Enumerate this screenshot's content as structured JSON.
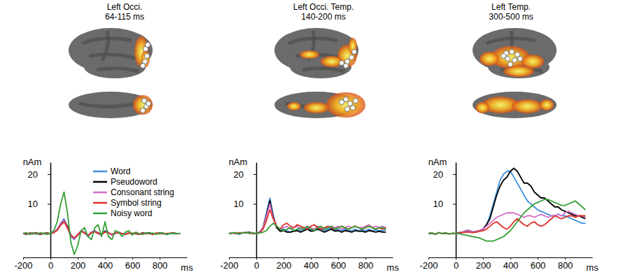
{
  "chart_data": [
    {
      "type": "line",
      "title": "Left Occi.",
      "subtitle": "64-115 ms",
      "x_label": "ms",
      "y_label": "nAm",
      "x": [
        -200,
        -175,
        -150,
        -125,
        -100,
        -75,
        -50,
        -25,
        0,
        25,
        50,
        75,
        100,
        125,
        150,
        175,
        200,
        225,
        250,
        275,
        300,
        325,
        350,
        375,
        400,
        425,
        450,
        475,
        500,
        525,
        550,
        575,
        600,
        625,
        650,
        675,
        700,
        725,
        750,
        775,
        800,
        825,
        850,
        875,
        900,
        925,
        950
      ],
      "xlim": [
        -200,
        1000
      ],
      "xticks": [
        -200,
        0,
        200,
        400,
        600,
        800
      ],
      "ylim": [
        -8,
        24
      ],
      "yticks": [
        10,
        20
      ],
      "legend": "top-right",
      "series": [
        {
          "name": "Word",
          "color": "#3f8fd8",
          "values": [
            0,
            0.2,
            -0.2,
            0.3,
            0,
            -0.3,
            0.2,
            0,
            0,
            0.5,
            1.5,
            3.5,
            5,
            2,
            -1,
            -2,
            -0.5,
            1,
            0.5,
            -1,
            0.5,
            1,
            0,
            -0.5,
            1,
            0.5,
            -0.5,
            0,
            0.5,
            0,
            -0.3,
            0.3,
            0,
            0.2,
            -0.2,
            0.2,
            0,
            0.3,
            -0.2,
            0.1,
            0,
            0.2,
            -0.3,
            0,
            0.2,
            0,
            0.1
          ]
        },
        {
          "name": "Pseudoword",
          "color": "#000000",
          "values": [
            0,
            -0.2,
            0.2,
            0,
            0.3,
            -0.2,
            0,
            0.2,
            0,
            0.4,
            1.2,
            3,
            4.5,
            2.5,
            -0.5,
            -1.5,
            -0.5,
            0.8,
            0.3,
            -0.8,
            0.3,
            0.8,
            0.2,
            -0.3,
            0.8,
            0.3,
            -0.3,
            0.2,
            0.4,
            0,
            -0.2,
            0.2,
            0.1,
            0,
            -0.2,
            0.3,
            0,
            0.2,
            -0.1,
            0,
            0.2,
            0.1,
            -0.2,
            0.1,
            0.2,
            0,
            0
          ]
        },
        {
          "name": "Consonant string",
          "color": "#d36fc6",
          "values": [
            0.2,
            0,
            0,
            -0.2,
            0.2,
            0,
            0.1,
            -0.1,
            0,
            0.5,
            1.5,
            3.5,
            4.5,
            2,
            -0.8,
            -1.8,
            -0.3,
            1,
            0.3,
            -0.8,
            0.5,
            0.8,
            0,
            -0.4,
            0.6,
            0.4,
            -0.4,
            0.1,
            0.3,
            0.1,
            -0.2,
            0.3,
            0,
            0.2,
            -0.1,
            0.1,
            0.2,
            0,
            -0.2,
            0.2,
            0,
            0.1,
            -0.1,
            0.2,
            0,
            -0.1,
            0.1
          ]
        },
        {
          "name": "Symbol string",
          "color": "#e2302b",
          "values": [
            0,
            0.1,
            -0.1,
            0.2,
            0,
            -0.1,
            0.1,
            0,
            0,
            0.3,
            1.2,
            2.8,
            4,
            1.8,
            -0.5,
            -1.5,
            -0.3,
            0.8,
            0.2,
            -0.6,
            0.4,
            0.6,
            0,
            -0.2,
            0.5,
            0.2,
            -0.3,
            0.2,
            0.3,
            0,
            -0.2,
            0.2,
            0,
            0.1,
            -0.2,
            0.1,
            0.1,
            0,
            -0.3,
            0.2,
            0,
            -0.1,
            0.1,
            0,
            0.2,
            -0.1,
            0
          ]
        },
        {
          "name": "Noisy word",
          "color": "#34a035",
          "values": [
            0,
            0.3,
            -0.3,
            0.2,
            -0.2,
            0.3,
            0,
            -0.2,
            0,
            1,
            4,
            10,
            14,
            7,
            -3,
            -7,
            -4,
            1,
            2,
            -1,
            -2,
            2,
            3,
            -1,
            4,
            -1,
            -2,
            1,
            0.5,
            -1,
            0.5,
            1,
            -0.5,
            0.5,
            0,
            -0.3,
            0.3,
            0,
            0.2,
            -0.2,
            0,
            0.2,
            -0.2,
            0,
            0.1,
            0,
            0
          ]
        }
      ]
    },
    {
      "type": "line",
      "title": "Left Occi. Temp.",
      "subtitle": "140-200 ms",
      "x_label": "ms",
      "y_label": "nAm",
      "x": [
        -200,
        -175,
        -150,
        -125,
        -100,
        -75,
        -50,
        -25,
        0,
        25,
        50,
        75,
        100,
        125,
        150,
        175,
        200,
        225,
        250,
        275,
        300,
        325,
        350,
        375,
        400,
        425,
        450,
        475,
        500,
        525,
        550,
        575,
        600,
        625,
        650,
        675,
        700,
        725,
        750,
        775,
        800,
        825,
        850,
        875,
        900,
        925,
        950
      ],
      "xlim": [
        -200,
        1000
      ],
      "xticks": [
        -200,
        0,
        200,
        400,
        600,
        800
      ],
      "ylim": [
        -8,
        24
      ],
      "yticks": [
        10,
        20
      ],
      "series": [
        {
          "name": "Word",
          "color": "#3f8fd8",
          "values": [
            0,
            0.3,
            0,
            -0.2,
            0.2,
            0.5,
            0,
            0.3,
            0,
            0.5,
            2,
            7,
            12,
            6,
            2,
            1,
            1.5,
            1,
            0.5,
            1,
            1.5,
            1,
            1.5,
            2,
            1,
            1.5,
            2,
            1.5,
            1,
            1.5,
            2,
            1,
            1.5,
            1,
            1.5,
            1,
            1,
            1.5,
            1,
            1.2,
            1,
            1.5,
            1,
            1.2,
            1,
            1,
            1.2
          ]
        },
        {
          "name": "Pseudoword",
          "color": "#000000",
          "values": [
            0,
            0.2,
            0.3,
            0,
            0.3,
            0.2,
            0.5,
            0,
            0,
            0.5,
            2,
            6.5,
            11,
            5.5,
            2,
            0.8,
            1,
            0.5,
            0.5,
            0.8,
            1,
            0.5,
            1,
            1.5,
            0.8,
            1,
            1.5,
            1,
            0.5,
            1,
            1.5,
            0.8,
            1,
            0.5,
            1,
            0.8,
            0.5,
            1,
            0.8,
            0.8,
            0.5,
            1,
            0.8,
            0.5,
            0.8,
            0.5,
            0.5
          ]
        },
        {
          "name": "Consonant string",
          "color": "#d36fc6",
          "values": [
            0.2,
            0.3,
            0,
            0.2,
            0.3,
            0.4,
            0.2,
            0.3,
            0,
            0.5,
            2,
            6,
            10,
            5,
            2.5,
            1.5,
            2,
            2.5,
            1.5,
            2,
            2.5,
            1.5,
            2,
            2.5,
            2,
            1.5,
            2.5,
            2,
            1.5,
            2,
            2.5,
            2,
            2.5,
            1.5,
            2,
            2.5,
            2,
            2.5,
            2,
            2,
            2.5,
            3,
            2,
            2.5,
            2,
            2.5,
            2
          ]
        },
        {
          "name": "Symbol string",
          "color": "#e2302b",
          "values": [
            0,
            0.2,
            0,
            0.3,
            0.2,
            0.3,
            0.2,
            0,
            0,
            0.3,
            1.5,
            4.5,
            8,
            5,
            2.5,
            1.5,
            3,
            3.5,
            2.5,
            2,
            3,
            2.5,
            2,
            1.5,
            2.5,
            3,
            2,
            1.5,
            2,
            2.5,
            2,
            1.5,
            2,
            2.5,
            2,
            1.5,
            2,
            2.5,
            2,
            1.5,
            2,
            2.5,
            2,
            1.5,
            2,
            1.5,
            2
          ]
        },
        {
          "name": "Noisy word",
          "color": "#34a035",
          "values": [
            0,
            0.2,
            0.3,
            0,
            0.2,
            0.4,
            0.3,
            0.2,
            0,
            0.2,
            0.5,
            1,
            2.5,
            3.5,
            2.5,
            1.5,
            1,
            1.5,
            2,
            1,
            1.5,
            2,
            1.5,
            2.5,
            1.5,
            1,
            2,
            2.5,
            1.5,
            2,
            2.5,
            1.5,
            2,
            2.5,
            2,
            1.5,
            2,
            2.5,
            2,
            1.5,
            2,
            2.5,
            2,
            1.5,
            2,
            2,
            1.5
          ]
        }
      ]
    },
    {
      "type": "line",
      "title": "Left Temp.",
      "subtitle": "300-500 ms",
      "x_label": "ms",
      "y_label": "nAm",
      "x": [
        -200,
        -175,
        -150,
        -125,
        -100,
        -75,
        -50,
        -25,
        0,
        25,
        50,
        75,
        100,
        125,
        150,
        175,
        200,
        225,
        250,
        275,
        300,
        325,
        350,
        375,
        400,
        425,
        450,
        475,
        500,
        525,
        550,
        575,
        600,
        625,
        650,
        675,
        700,
        725,
        750,
        775,
        800,
        825,
        850,
        875,
        900,
        925,
        950
      ],
      "xlim": [
        -200,
        1000
      ],
      "xticks": [
        -200,
        0,
        200,
        400,
        600,
        800
      ],
      "ylim": [
        -8,
        24
      ],
      "yticks": [
        10,
        20
      ],
      "series": [
        {
          "name": "Word",
          "color": "#3f8fd8",
          "values": [
            0,
            0.2,
            -0.2,
            0.3,
            0,
            0.2,
            -0.1,
            0.1,
            0,
            0.3,
            0.5,
            1,
            1,
            0.5,
            0.5,
            1,
            1.5,
            3,
            6,
            10,
            14,
            18,
            20,
            21,
            21,
            19,
            17,
            15,
            13,
            11,
            10,
            9,
            8,
            7.5,
            7,
            6.5,
            6,
            6,
            6.5,
            6,
            6,
            5.5,
            5,
            4.5,
            4,
            3.5,
            3.5
          ]
        },
        {
          "name": "Pseudoword",
          "color": "#000000",
          "values": [
            0,
            0.2,
            -0.2,
            0.3,
            0,
            0.2,
            -0.1,
            0.1,
            0,
            0.3,
            0.5,
            1,
            1,
            0.5,
            0.8,
            1,
            1.5,
            3,
            5,
            9,
            13,
            16,
            18,
            19,
            21,
            22,
            21,
            19,
            17,
            17,
            16,
            14,
            13,
            12,
            12,
            11,
            10,
            9,
            9,
            8,
            7.5,
            7,
            6.5,
            6,
            6,
            5.5,
            5
          ]
        },
        {
          "name": "Consonant string",
          "color": "#d36fc6",
          "values": [
            0,
            0.2,
            -0.2,
            0.3,
            0,
            0.2,
            -0.1,
            0.1,
            0,
            0.3,
            0.5,
            1,
            1,
            0.5,
            0.8,
            1,
            1.5,
            2.5,
            3.5,
            4.5,
            5.5,
            6,
            6.5,
            7,
            7,
            7,
            6.5,
            6,
            5.5,
            6,
            6,
            5.5,
            6,
            6.5,
            6,
            5.5,
            6,
            6,
            6.5,
            6,
            7,
            7.5,
            7,
            6.5,
            6,
            6,
            5.5
          ]
        },
        {
          "name": "Symbol string",
          "color": "#e2302b",
          "values": [
            0,
            0.2,
            -0.2,
            0.3,
            0,
            0.2,
            -0.1,
            0.1,
            0,
            0.2,
            0.3,
            0.5,
            0.5,
            0.3,
            0.5,
            0.8,
            1,
            1.5,
            2.5,
            3.5,
            4,
            3,
            2,
            1.5,
            2.5,
            4,
            5,
            4,
            3,
            2.5,
            3.5,
            4,
            3,
            2.5,
            3,
            4,
            5,
            6,
            5.5,
            5,
            5.5,
            6,
            6,
            5.5,
            6,
            6,
            6
          ]
        },
        {
          "name": "Noisy word",
          "color": "#34a035",
          "values": [
            0,
            0.2,
            -0.2,
            0.3,
            0,
            0.2,
            -0.1,
            0.1,
            0,
            0,
            -0.3,
            -0.5,
            -0.8,
            -1,
            -1.2,
            -1.5,
            -2,
            -2.5,
            -2.5,
            -2.5,
            -2,
            -1.5,
            -1,
            0,
            1,
            2.5,
            4,
            5.5,
            7,
            8,
            9,
            10,
            10.5,
            11,
            11.5,
            11.5,
            11,
            10.5,
            10,
            9.5,
            9.5,
            10,
            10.5,
            11,
            10,
            9,
            8
          ]
        }
      ]
    }
  ]
}
